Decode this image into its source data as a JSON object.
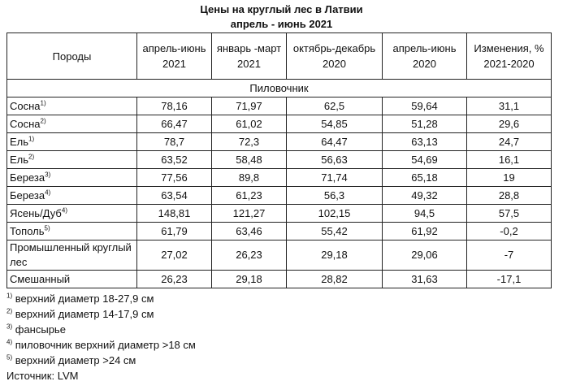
{
  "title": "Цены на круглый лес в Латвии",
  "subtitle": "апрель - июнь 2021",
  "headers": [
    "Породы",
    "апрель-июнь 2021",
    "январь -март 2021",
    "октябрь-декабрь 2020",
    "апрель-июнь 2020",
    "Изменения, % 2021-2020"
  ],
  "section": "Пиловочник",
  "rows": [
    {
      "name": "Сосна",
      "note": "1)",
      "values": [
        "78,16",
        "71,97",
        "62,5",
        "59,64",
        "31,1"
      ]
    },
    {
      "name": "Сосна",
      "note": "2)",
      "values": [
        "66,47",
        "61,02",
        "54,85",
        "51,28",
        "29,6"
      ]
    },
    {
      "name": "Ель",
      "note": "1)",
      "values": [
        "78,7",
        "72,3",
        "64,47",
        "63,13",
        "24,7"
      ]
    },
    {
      "name": "Ель",
      "note": "2)",
      "values": [
        "63,52",
        "58,48",
        "56,63",
        "54,69",
        "16,1"
      ]
    },
    {
      "name": "Береза",
      "note": "3)",
      "values": [
        "77,56",
        "89,8",
        "71,74",
        "65,18",
        "19"
      ]
    },
    {
      "name": "Береза",
      "note": "4)",
      "values": [
        "63,54",
        "61,23",
        "56,3",
        "49,32",
        "28,8"
      ]
    },
    {
      "name": "Ясень/Дуб",
      "note": "4)",
      "values": [
        "148,81",
        "121,27",
        "102,15",
        "94,5",
        "57,5"
      ]
    },
    {
      "name": "Тополь",
      "note": "5)",
      "values": [
        "61,79",
        "63,46",
        "55,42",
        "61,92",
        "-0,2"
      ]
    },
    {
      "name": "Промышленный круглый лес",
      "note": "",
      "values": [
        "27,02",
        "26,23",
        "29,18",
        "29,06",
        "-7"
      ]
    },
    {
      "name": "Смешанный",
      "note": "",
      "values": [
        "26,23",
        "29,18",
        "28,82",
        "31,63",
        "-17,1"
      ]
    }
  ],
  "footnotes": [
    {
      "mark": "1)",
      "text": "верхний диаметр 18-27,9 см"
    },
    {
      "mark": "2)",
      "text": "верхний диаметр 14-17,9 см"
    },
    {
      "mark": "3)",
      "text": "фансырье"
    },
    {
      "mark": "4)",
      "text": "пиловочник верхний диаметр >18 см"
    },
    {
      "mark": "5)",
      "text": "верхний диаметр >24 см"
    }
  ],
  "source": "Источник: LVM"
}
